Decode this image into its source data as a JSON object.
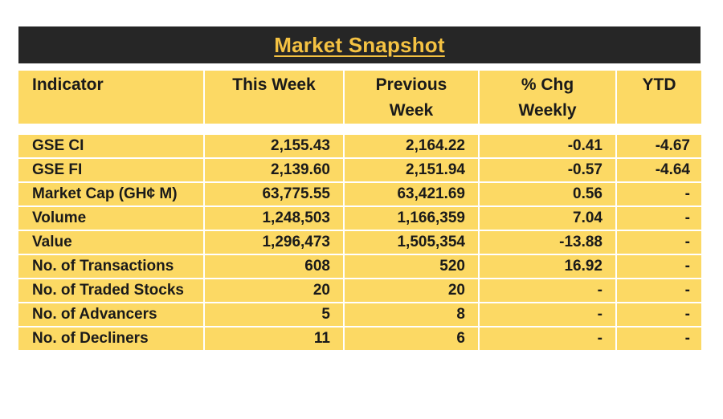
{
  "title": "Market Snapshot",
  "columns": {
    "indicator": "Indicator",
    "this_week": "This Week",
    "previous_week": "Previous Week",
    "pct_chg_weekly": "% Chg Weekly",
    "ytd": "YTD"
  },
  "rows": [
    {
      "indicator": "GSE CI",
      "this_week": "2,155.43",
      "previous_week": "2,164.22",
      "pct_chg_weekly": "-0.41",
      "ytd": "-4.67"
    },
    {
      "indicator": "GSE FI",
      "this_week": "2,139.60",
      "previous_week": "2,151.94",
      "pct_chg_weekly": "-0.57",
      "ytd": "-4.64"
    },
    {
      "indicator": "Market Cap (GH¢ M)",
      "this_week": "63,775.55",
      "previous_week": "63,421.69",
      "pct_chg_weekly": "0.56",
      "ytd": "-"
    },
    {
      "indicator": "Volume",
      "this_week": "1,248,503",
      "previous_week": "1,166,359",
      "pct_chg_weekly": "7.04",
      "ytd": "-"
    },
    {
      "indicator": "Value",
      "this_week": "1,296,473",
      "previous_week": "1,505,354",
      "pct_chg_weekly": "-13.88",
      "ytd": "-"
    },
    {
      "indicator": "No. of Transactions",
      "this_week": "608",
      "previous_week": "520",
      "pct_chg_weekly": "16.92",
      "ytd": "-"
    },
    {
      "indicator": "No. of Traded Stocks",
      "this_week": "20",
      "previous_week": "20",
      "pct_chg_weekly": "-",
      "ytd": "-"
    },
    {
      "indicator": "No. of Advancers",
      "this_week": "5",
      "previous_week": "8",
      "pct_chg_weekly": "-",
      "ytd": "-"
    },
    {
      "indicator": "No. of Decliners",
      "this_week": "11",
      "previous_week": "6",
      "pct_chg_weekly": "-",
      "ytd": "-"
    }
  ],
  "colors": {
    "title_bar": "#262626",
    "title_text": "#F5C242",
    "cell_fill": "#FCD964",
    "text": "#1a1a1a"
  }
}
